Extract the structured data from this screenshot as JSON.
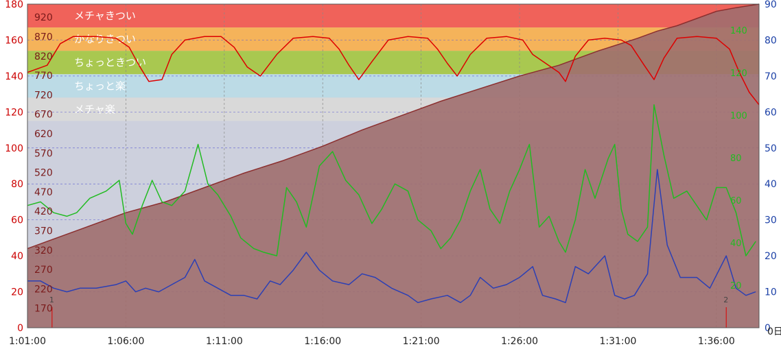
{
  "chart_data": {
    "type": "line",
    "x_ticks": [
      "1:01:00",
      "1:06:00",
      "1:11:00",
      "1:16:00",
      "1:21:00",
      "1:26:00",
      "1:31:00",
      "1:36:00"
    ],
    "xlim": [
      "1:01:00",
      "1:38:10"
    ],
    "x_axis_end_label": "0日",
    "left_axis": {
      "ylim": [
        0,
        180
      ],
      "ticks": [
        "0",
        "20",
        "40",
        "60",
        "80",
        "100",
        "120",
        "140",
        "160",
        "180"
      ]
    },
    "right_axis": {
      "ylim": [
        0,
        90
      ],
      "ticks": [
        "0",
        "10",
        "20",
        "30",
        "40",
        "50",
        "60",
        "70",
        "80",
        "90"
      ]
    },
    "power_axis_ticks": [
      "170",
      "220",
      "270",
      "320",
      "370",
      "420",
      "470",
      "520",
      "570",
      "620",
      "670",
      "720",
      "770",
      "820",
      "870",
      "920"
    ],
    "cadence_axis_ticks": [
      "20",
      "40",
      "60",
      "80",
      "100",
      "120",
      "140"
    ],
    "zones": [
      {
        "label": "メチャきつい",
        "from": 167,
        "to": 180,
        "color": "#f0625a"
      },
      {
        "label": "かなりきつい",
        "from": 154,
        "to": 167,
        "color": "#f5b35a"
      },
      {
        "label": "ちょっときつい",
        "from": 141,
        "to": 154,
        "color": "#a9c850"
      },
      {
        "label": "ちょっと楽",
        "from": 128,
        "to": 141,
        "color": "#bcdbe6"
      },
      {
        "label": "メチャ楽",
        "from": 115,
        "to": 128,
        "color": "#d9d9d9"
      }
    ],
    "laps": [
      {
        "label": "1",
        "x": "1:02:15"
      },
      {
        "label": "2",
        "x": "1:36:30"
      }
    ],
    "series": [
      {
        "axis": "left",
        "color": "#dd0000",
        "points": [
          [
            "1:01:00",
            142
          ],
          [
            "1:02:00",
            146
          ],
          [
            "1:02:40",
            158
          ],
          [
            "1:03:20",
            162
          ],
          [
            "1:04:30",
            162
          ],
          [
            "1:05:30",
            161
          ],
          [
            "1:06:10",
            156
          ],
          [
            "1:06:40",
            146
          ],
          [
            "1:07:10",
            137
          ],
          [
            "1:07:50",
            138
          ],
          [
            "1:08:20",
            152
          ],
          [
            "1:09:00",
            160
          ],
          [
            "1:10:00",
            162
          ],
          [
            "1:10:50",
            162
          ],
          [
            "1:11:30",
            156
          ],
          [
            "1:12:10",
            145
          ],
          [
            "1:12:50",
            140
          ],
          [
            "1:13:40",
            152
          ],
          [
            "1:14:30",
            161
          ],
          [
            "1:15:30",
            162
          ],
          [
            "1:16:20",
            161
          ],
          [
            "1:16:50",
            155
          ],
          [
            "1:17:20",
            146
          ],
          [
            "1:17:50",
            138
          ],
          [
            "1:18:30",
            148
          ],
          [
            "1:19:20",
            160
          ],
          [
            "1:20:20",
            162
          ],
          [
            "1:21:20",
            161
          ],
          [
            "1:21:50",
            155
          ],
          [
            "1:22:20",
            147
          ],
          [
            "1:22:50",
            140
          ],
          [
            "1:23:30",
            152
          ],
          [
            "1:24:20",
            161
          ],
          [
            "1:25:20",
            162
          ],
          [
            "1:26:10",
            160
          ],
          [
            "1:26:40",
            152
          ],
          [
            "1:27:20",
            147
          ],
          [
            "1:28:00",
            142
          ],
          [
            "1:28:20",
            137
          ],
          [
            "1:28:50",
            151
          ],
          [
            "1:29:30",
            160
          ],
          [
            "1:30:20",
            161
          ],
          [
            "1:31:10",
            160
          ],
          [
            "1:31:40",
            157
          ],
          [
            "1:32:20",
            146
          ],
          [
            "1:32:50",
            138
          ],
          [
            "1:33:20",
            150
          ],
          [
            "1:34:00",
            161
          ],
          [
            "1:35:00",
            162
          ],
          [
            "1:36:00",
            161
          ],
          [
            "1:36:40",
            155
          ],
          [
            "1:37:10",
            142
          ],
          [
            "1:37:40",
            131
          ],
          [
            "1:38:10",
            124
          ]
        ]
      },
      {
        "axis": "right",
        "color": "#2b3fb5",
        "points": [
          [
            "1:01:00",
            13
          ],
          [
            "1:01:40",
            13
          ],
          [
            "1:02:20",
            11
          ],
          [
            "1:03:00",
            10
          ],
          [
            "1:03:40",
            11
          ],
          [
            "1:04:30",
            11
          ],
          [
            "1:05:30",
            12
          ],
          [
            "1:06:00",
            13
          ],
          [
            "1:06:30",
            10
          ],
          [
            "1:07:00",
            11
          ],
          [
            "1:07:40",
            10
          ],
          [
            "1:08:20",
            12
          ],
          [
            "1:09:00",
            14
          ],
          [
            "1:09:30",
            19
          ],
          [
            "1:10:00",
            13
          ],
          [
            "1:10:40",
            11
          ],
          [
            "1:11:20",
            9
          ],
          [
            "1:12:00",
            9
          ],
          [
            "1:12:40",
            8
          ],
          [
            "1:13:20",
            13
          ],
          [
            "1:13:50",
            12
          ],
          [
            "1:14:30",
            16
          ],
          [
            "1:15:10",
            21
          ],
          [
            "1:15:50",
            16
          ],
          [
            "1:16:30",
            13
          ],
          [
            "1:17:20",
            12
          ],
          [
            "1:18:00",
            15
          ],
          [
            "1:18:40",
            14
          ],
          [
            "1:19:30",
            11
          ],
          [
            "1:20:20",
            9
          ],
          [
            "1:20:50",
            7
          ],
          [
            "1:21:30",
            8
          ],
          [
            "1:22:20",
            9
          ],
          [
            "1:23:00",
            7
          ],
          [
            "1:23:30",
            9
          ],
          [
            "1:24:00",
            14
          ],
          [
            "1:24:40",
            11
          ],
          [
            "1:25:20",
            12
          ],
          [
            "1:26:00",
            14
          ],
          [
            "1:26:40",
            17
          ],
          [
            "1:27:10",
            9
          ],
          [
            "1:27:50",
            8
          ],
          [
            "1:28:20",
            7
          ],
          [
            "1:28:50",
            17
          ],
          [
            "1:29:30",
            15
          ],
          [
            "1:30:20",
            20
          ],
          [
            "1:30:50",
            9
          ],
          [
            "1:31:20",
            8
          ],
          [
            "1:31:50",
            9
          ],
          [
            "1:32:30",
            15
          ],
          [
            "1:33:00",
            44
          ],
          [
            "1:33:30",
            23
          ],
          [
            "1:34:10",
            14
          ],
          [
            "1:35:00",
            14
          ],
          [
            "1:35:40",
            11
          ],
          [
            "1:36:30",
            20
          ],
          [
            "1:37:00",
            11
          ],
          [
            "1:37:30",
            9
          ],
          [
            "1:38:00",
            10
          ]
        ]
      },
      {
        "axis": "right",
        "color": "#22bb22",
        "points": [
          [
            "1:01:00",
            34
          ],
          [
            "1:01:40",
            35
          ],
          [
            "1:02:20",
            32
          ],
          [
            "1:03:00",
            31
          ],
          [
            "1:03:30",
            32
          ],
          [
            "1:04:10",
            36
          ],
          [
            "1:05:00",
            38
          ],
          [
            "1:05:40",
            41
          ],
          [
            "1:06:00",
            29
          ],
          [
            "1:06:20",
            26
          ],
          [
            "1:06:50",
            34
          ],
          [
            "1:07:20",
            41
          ],
          [
            "1:07:50",
            35
          ],
          [
            "1:08:20",
            34
          ],
          [
            "1:09:00",
            38
          ],
          [
            "1:09:40",
            51
          ],
          [
            "1:10:10",
            40
          ],
          [
            "1:10:40",
            37
          ],
          [
            "1:11:20",
            31
          ],
          [
            "1:11:50",
            25
          ],
          [
            "1:12:30",
            22
          ],
          [
            "1:13:00",
            21
          ],
          [
            "1:13:40",
            20
          ],
          [
            "1:14:10",
            39
          ],
          [
            "1:14:40",
            35
          ],
          [
            "1:15:10",
            28
          ],
          [
            "1:15:50",
            45
          ],
          [
            "1:16:30",
            49
          ],
          [
            "1:17:10",
            41
          ],
          [
            "1:17:50",
            37
          ],
          [
            "1:18:30",
            29
          ],
          [
            "1:19:00",
            33
          ],
          [
            "1:19:40",
            40
          ],
          [
            "1:20:20",
            38
          ],
          [
            "1:20:50",
            30
          ],
          [
            "1:21:30",
            27
          ],
          [
            "1:22:00",
            22
          ],
          [
            "1:22:30",
            25
          ],
          [
            "1:23:00",
            30
          ],
          [
            "1:23:30",
            38
          ],
          [
            "1:24:00",
            44
          ],
          [
            "1:24:30",
            33
          ],
          [
            "1:25:00",
            29
          ],
          [
            "1:25:30",
            38
          ],
          [
            "1:26:00",
            44
          ],
          [
            "1:26:30",
            51
          ],
          [
            "1:27:00",
            28
          ],
          [
            "1:27:30",
            31
          ],
          [
            "1:28:00",
            24
          ],
          [
            "1:28:20",
            21
          ],
          [
            "1:28:50",
            30
          ],
          [
            "1:29:20",
            44
          ],
          [
            "1:29:50",
            36
          ],
          [
            "1:30:30",
            47
          ],
          [
            "1:30:50",
            51
          ],
          [
            "1:31:10",
            33
          ],
          [
            "1:31:30",
            26
          ],
          [
            "1:32:00",
            24
          ],
          [
            "1:32:30",
            28
          ],
          [
            "1:32:50",
            62
          ],
          [
            "1:33:20",
            48
          ],
          [
            "1:33:50",
            36
          ],
          [
            "1:34:30",
            38
          ],
          [
            "1:35:00",
            34
          ],
          [
            "1:35:30",
            30
          ],
          [
            "1:36:00",
            39
          ],
          [
            "1:36:30",
            39
          ],
          [
            "1:37:00",
            32
          ],
          [
            "1:37:30",
            20
          ],
          [
            "1:38:00",
            24
          ]
        ]
      },
      {
        "axis": "left",
        "color": "#8b2f2f",
        "fill": "#a06e6e",
        "points": [
          [
            "1:01:00",
            44
          ],
          [
            "1:02:00",
            48
          ],
          [
            "1:04:00",
            56
          ],
          [
            "1:06:00",
            64
          ],
          [
            "1:08:00",
            70
          ],
          [
            "1:10:00",
            78
          ],
          [
            "1:12:00",
            86
          ],
          [
            "1:14:00",
            93
          ],
          [
            "1:16:00",
            101
          ],
          [
            "1:18:00",
            110
          ],
          [
            "1:20:00",
            118
          ],
          [
            "1:22:00",
            126
          ],
          [
            "1:24:00",
            133
          ],
          [
            "1:26:00",
            140
          ],
          [
            "1:28:00",
            146
          ],
          [
            "1:30:00",
            154
          ],
          [
            "1:32:00",
            161
          ],
          [
            "1:33:00",
            165
          ],
          [
            "1:34:00",
            168
          ],
          [
            "1:35:00",
            172
          ],
          [
            "1:36:00",
            176
          ],
          [
            "1:37:00",
            178
          ],
          [
            "1:38:10",
            180
          ]
        ]
      }
    ]
  }
}
